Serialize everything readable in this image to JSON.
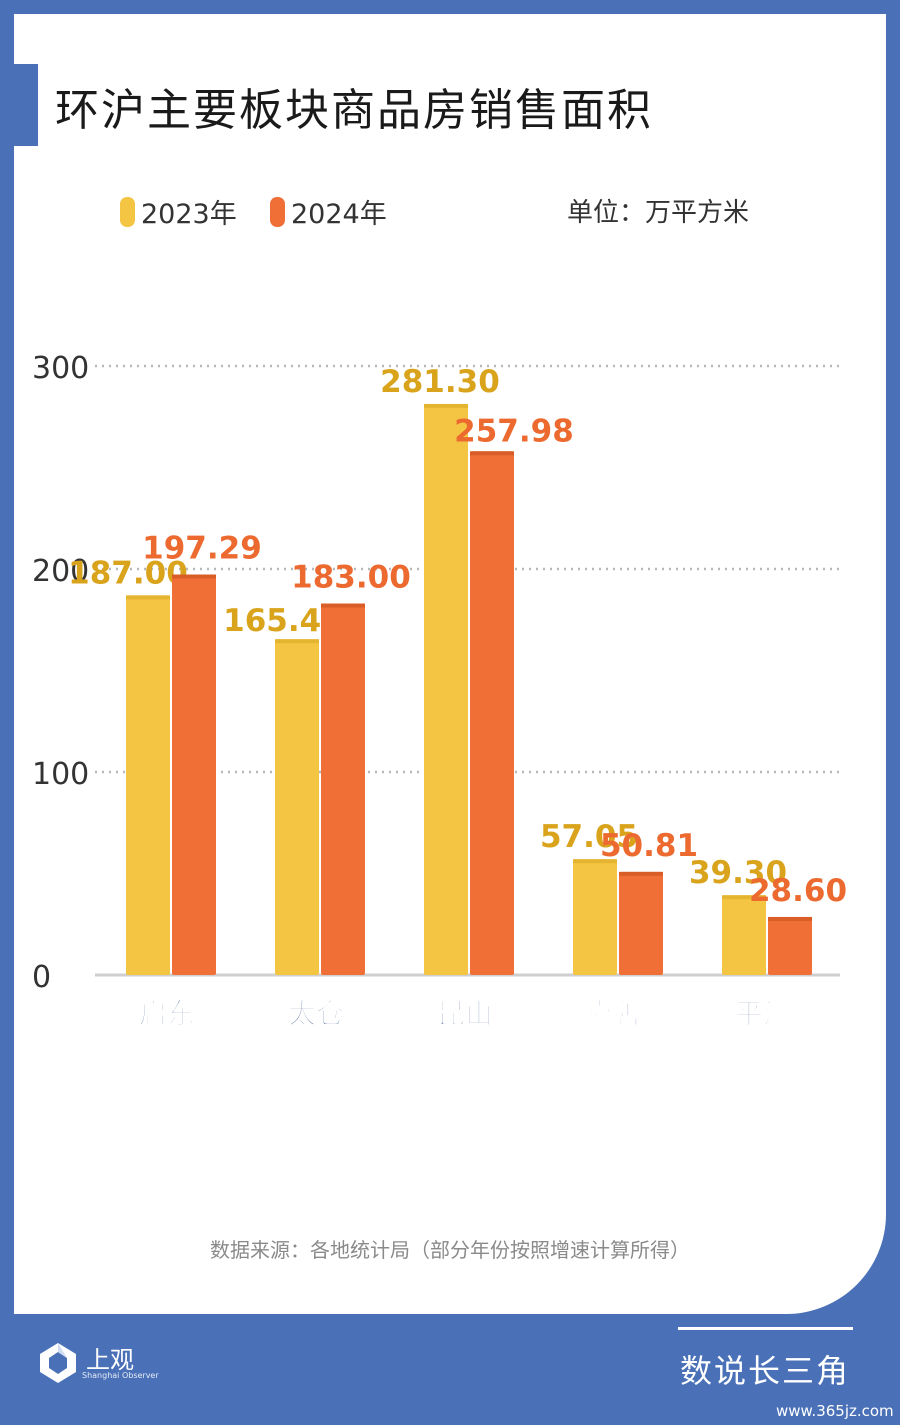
{
  "title": "环沪主要板块商品房销售面积",
  "unit_label": "单位：万平方米",
  "source_note": "数据来源：各地统计局（部分年份按照增速计算所得）",
  "footer": {
    "logo_name": "上观",
    "logo_sub": "Shanghai Observer",
    "brand": "数说长三角",
    "watermark": "www.365jz.com"
  },
  "colors": {
    "series_2023": "#f4c542",
    "series_2024": "#ef6f37",
    "label_2023": "#d9a41c",
    "label_2024": "#ec6a30",
    "category_text": "#2e4d86",
    "accent": "#4a71b7"
  },
  "chart_data": {
    "type": "bar",
    "categories": [
      "启东",
      "太仓",
      "昆山",
      "嘉善",
      "平湖"
    ],
    "series": [
      {
        "name": "2023年",
        "values": [
          187.0,
          165.42,
          281.3,
          57.05,
          39.3
        ]
      },
      {
        "name": "2024年",
        "values": [
          197.29,
          183.0,
          257.98,
          50.81,
          28.6
        ]
      }
    ],
    "value_labels": [
      [
        "187.00",
        "165.42",
        "281.30",
        "57.05",
        "39.30"
      ],
      [
        "197.29",
        "183.00",
        "257.98",
        "50.81",
        "28.60"
      ]
    ],
    "yticks": [
      "0",
      "100",
      "200",
      "300"
    ],
    "ylim": [
      0,
      300
    ],
    "grid": true,
    "legend_position": "top-left"
  }
}
